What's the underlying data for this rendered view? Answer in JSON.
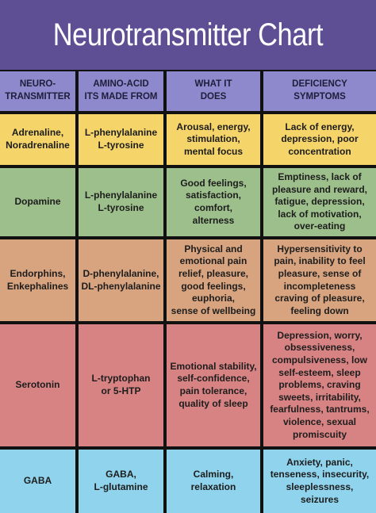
{
  "title": "Neurotransmitter Chart",
  "table": {
    "header": [
      [
        "NEURO-",
        "TRANSMITTER"
      ],
      [
        "AMINO-ACID",
        "ITS MADE FROM"
      ],
      [
        "WHAT IT",
        "DOES"
      ],
      [
        "DEFICIENCY",
        "SYMPTOMS"
      ]
    ],
    "rows": [
      [
        [
          "Adrenaline,",
          "Noradrenaline"
        ],
        [
          "L-phenylalanine",
          "L-tyrosine"
        ],
        [
          "Arousal, energy,",
          "stimulation,",
          "mental focus"
        ],
        [
          "Lack of energy,",
          "depression, poor",
          "concentration"
        ]
      ],
      [
        [
          "Dopamine"
        ],
        [
          "L-phenylalanine",
          "L-tyrosine"
        ],
        [
          "Good feelings,",
          "satisfaction,",
          "comfort,",
          "alterness"
        ],
        [
          "Emptiness, lack of",
          "pleasure and reward,",
          "fatigue, depression,",
          "lack of motivation,",
          "over-eating"
        ]
      ],
      [
        [
          "Endorphins,",
          "Enkephalines"
        ],
        [
          "D-phenylalanine,",
          "DL-phenylalanine"
        ],
        [
          "Physical and",
          "emotional pain",
          "relief, pleasure,",
          "good feelings,",
          "euphoria,",
          "sense of wellbeing"
        ],
        [
          "Hypersensitivity to",
          "pain, inability to feel",
          "pleasure, sense of",
          "incompleteness",
          "craving of pleasure,",
          "feeling down"
        ]
      ],
      [
        [
          "Serotonin"
        ],
        [
          "L-tryptophan",
          "or 5-HTP"
        ],
        [
          "Emotional stability,",
          "self-confidence,",
          "pain tolerance,",
          "quality of sleep"
        ],
        [
          "Depression, worry,",
          "obsessiveness,",
          "compulsiveness, low",
          "self-esteem, sleep",
          "problems, craving",
          "sweets, irritability,",
          "fearfulness, tantrums,",
          "violence, sexual",
          "promiscuity"
        ]
      ],
      [
        [
          "GABA"
        ],
        [
          "GABA,",
          "L-glutamine"
        ],
        [
          "Calming,",
          "relaxation"
        ],
        [
          "Anxiety, panic,",
          "tenseness, insecurity,",
          "sleeplessness,",
          "seizures"
        ]
      ]
    ]
  }
}
